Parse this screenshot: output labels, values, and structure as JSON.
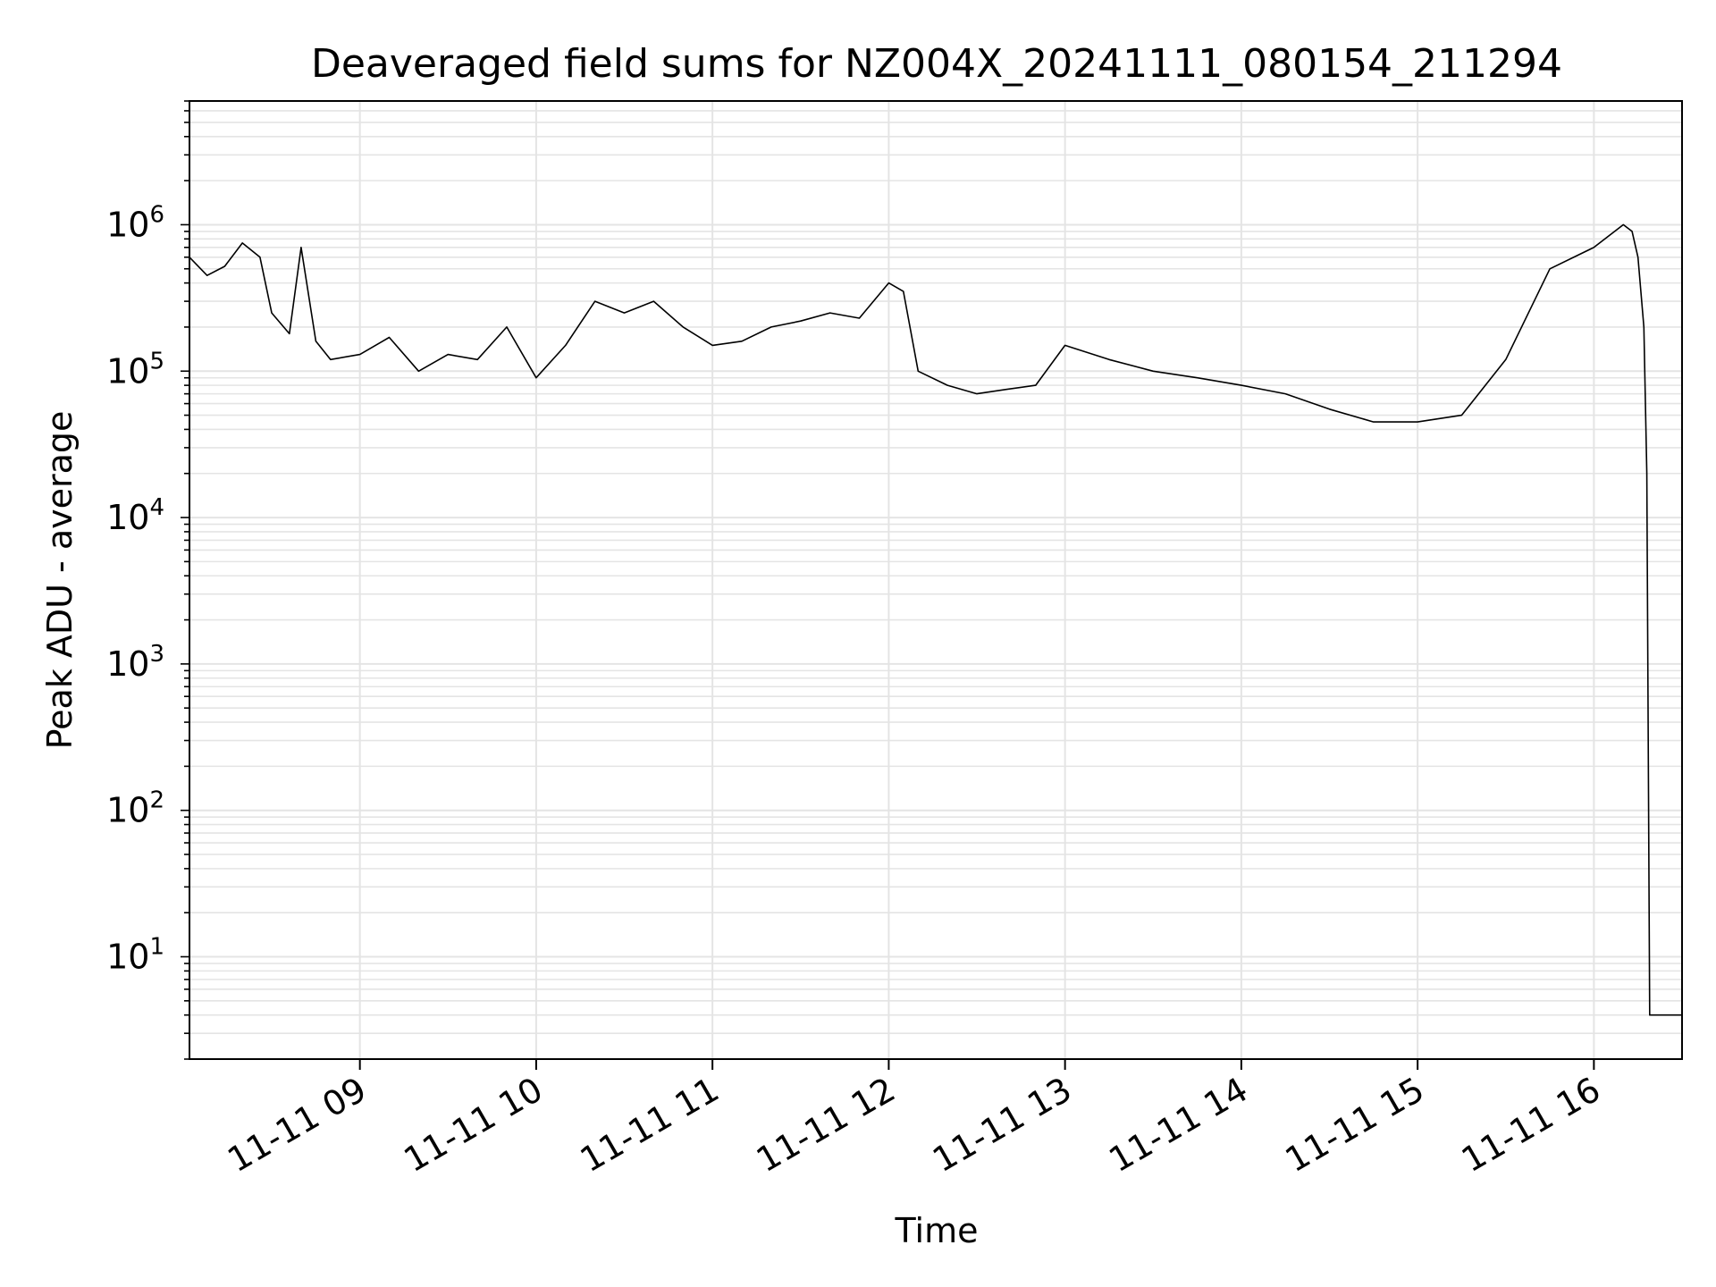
{
  "chart_data": {
    "type": "line",
    "title": "Deaveraged field sums for NZ004X_20241111_080154_211294",
    "xlabel": "Time",
    "ylabel": "Peak ADU - average",
    "yscale": "log",
    "ylim": [
      2,
      7000000
    ],
    "xlim": [
      "2024-11-11 08:02",
      "2024-11-11 16:30"
    ],
    "grid": true,
    "line_color": "#000000",
    "x_ticks": [
      {
        "label": "11-11 09",
        "value": "2024-11-11 09:00"
      },
      {
        "label": "11-11 10",
        "value": "2024-11-11 10:00"
      },
      {
        "label": "11-11 11",
        "value": "2024-11-11 11:00"
      },
      {
        "label": "11-11 12",
        "value": "2024-11-11 12:00"
      },
      {
        "label": "11-11 13",
        "value": "2024-11-11 13:00"
      },
      {
        "label": "11-11 14",
        "value": "2024-11-11 14:00"
      },
      {
        "label": "11-11 15",
        "value": "2024-11-11 15:00"
      },
      {
        "label": "11-11 16",
        "value": "2024-11-11 16:00"
      }
    ],
    "y_ticks": [
      {
        "base": "10",
        "exp": "1",
        "value": 10
      },
      {
        "base": "10",
        "exp": "2",
        "value": 100
      },
      {
        "base": "10",
        "exp": "3",
        "value": 1000
      },
      {
        "base": "10",
        "exp": "4",
        "value": 10000
      },
      {
        "base": "10",
        "exp": "5",
        "value": 100000
      },
      {
        "base": "10",
        "exp": "6",
        "value": 1000000
      }
    ],
    "series": [
      {
        "points": [
          [
            "2024-11-11 08:02",
            600000
          ],
          [
            "2024-11-11 08:08",
            450000
          ],
          [
            "2024-11-11 08:14",
            520000
          ],
          [
            "2024-11-11 08:20",
            750000
          ],
          [
            "2024-11-11 08:26",
            600000
          ],
          [
            "2024-11-11 08:30",
            250000
          ],
          [
            "2024-11-11 08:36",
            180000
          ],
          [
            "2024-11-11 08:40",
            700000
          ],
          [
            "2024-11-11 08:45",
            160000
          ],
          [
            "2024-11-11 08:50",
            120000
          ],
          [
            "2024-11-11 09:00",
            130000
          ],
          [
            "2024-11-11 09:10",
            170000
          ],
          [
            "2024-11-11 09:20",
            100000
          ],
          [
            "2024-11-11 09:30",
            130000
          ],
          [
            "2024-11-11 09:40",
            120000
          ],
          [
            "2024-11-11 09:50",
            200000
          ],
          [
            "2024-11-11 10:00",
            90000
          ],
          [
            "2024-11-11 10:10",
            150000
          ],
          [
            "2024-11-11 10:20",
            300000
          ],
          [
            "2024-11-11 10:30",
            250000
          ],
          [
            "2024-11-11 10:40",
            300000
          ],
          [
            "2024-11-11 10:50",
            200000
          ],
          [
            "2024-11-11 11:00",
            150000
          ],
          [
            "2024-11-11 11:10",
            160000
          ],
          [
            "2024-11-11 11:20",
            200000
          ],
          [
            "2024-11-11 11:30",
            220000
          ],
          [
            "2024-11-11 11:40",
            250000
          ],
          [
            "2024-11-11 11:50",
            230000
          ],
          [
            "2024-11-11 12:00",
            400000
          ],
          [
            "2024-11-11 12:05",
            350000
          ],
          [
            "2024-11-11 12:10",
            100000
          ],
          [
            "2024-11-11 12:20",
            80000
          ],
          [
            "2024-11-11 12:30",
            70000
          ],
          [
            "2024-11-11 12:40",
            75000
          ],
          [
            "2024-11-11 12:50",
            80000
          ],
          [
            "2024-11-11 13:00",
            150000
          ],
          [
            "2024-11-11 13:15",
            120000
          ],
          [
            "2024-11-11 13:30",
            100000
          ],
          [
            "2024-11-11 13:45",
            90000
          ],
          [
            "2024-11-11 14:00",
            80000
          ],
          [
            "2024-11-11 14:15",
            70000
          ],
          [
            "2024-11-11 14:30",
            55000
          ],
          [
            "2024-11-11 14:45",
            45000
          ],
          [
            "2024-11-11 15:00",
            45000
          ],
          [
            "2024-11-11 15:15",
            50000
          ],
          [
            "2024-11-11 15:30",
            120000
          ],
          [
            "2024-11-11 15:45",
            500000
          ],
          [
            "2024-11-11 16:00",
            700000
          ],
          [
            "2024-11-11 16:10",
            1000000
          ],
          [
            "2024-11-11 16:13",
            900000
          ],
          [
            "2024-11-11 16:15",
            600000
          ],
          [
            "2024-11-11 16:17",
            200000
          ],
          [
            "2024-11-11 16:18",
            20000
          ],
          [
            "2024-11-11 16:19",
            4
          ],
          [
            "2024-11-11 16:30",
            4
          ]
        ]
      }
    ]
  }
}
